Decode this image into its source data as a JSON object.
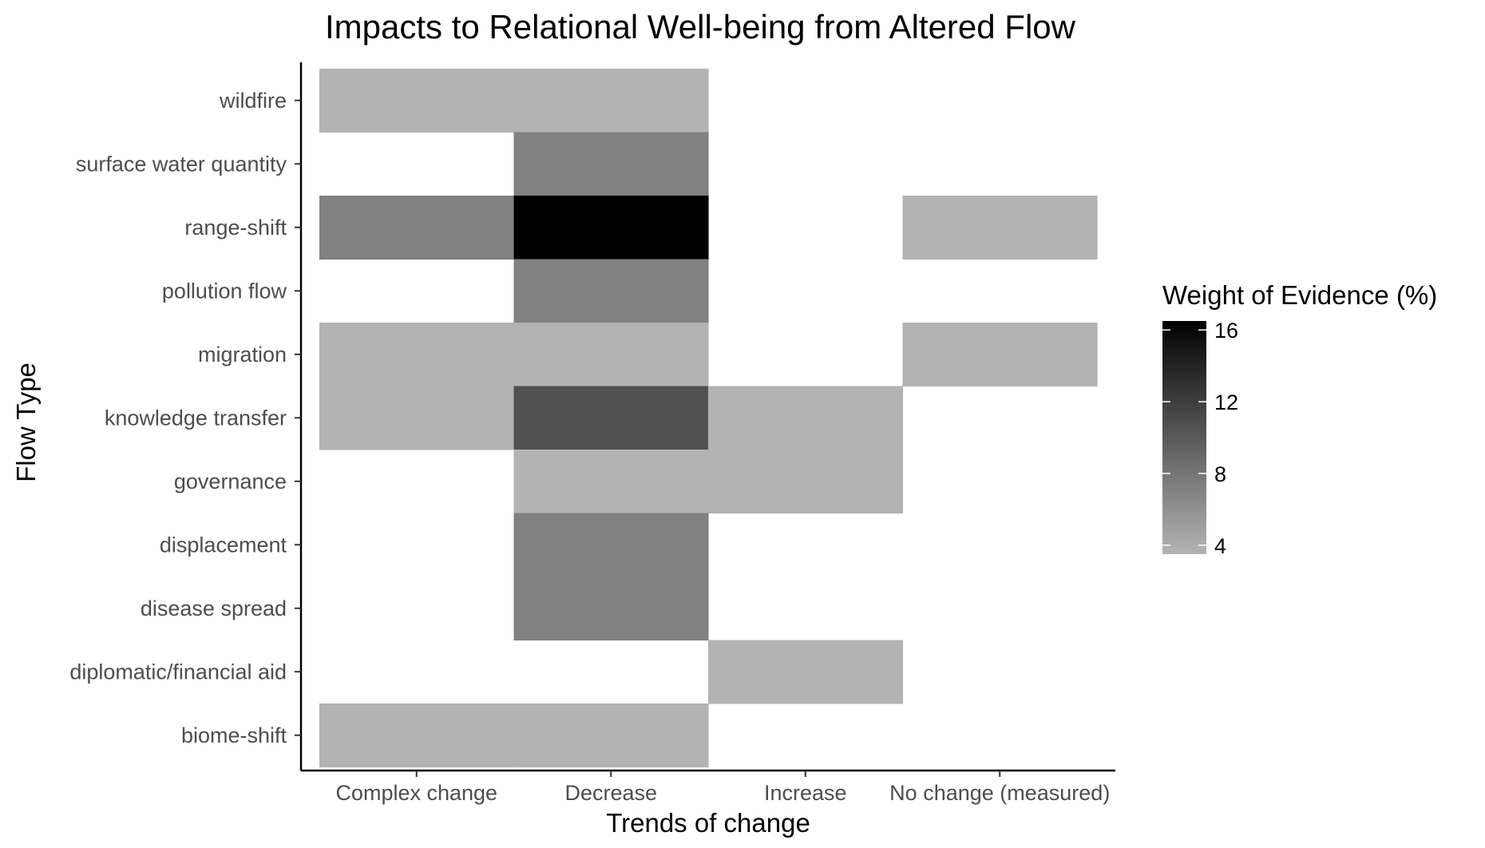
{
  "chart_data": {
    "type": "heatmap",
    "title": "Impacts to Relational Well-being from Altered Flow",
    "xlabel": "Trends of change",
    "ylabel": "Flow Type",
    "x_categories": [
      "Complex change",
      "Decrease",
      "Increase",
      "No change (measured)"
    ],
    "y_categories": [
      "biome-shift",
      "diplomatic/financial aid",
      "disease spread",
      "displacement",
      "governance",
      "knowledge transfer",
      "migration",
      "pollution flow",
      "range-shift",
      "surface water quantity",
      "wildfire"
    ],
    "cells": [
      {
        "x": "Complex change",
        "y": "wildfire",
        "value": 3.5
      },
      {
        "x": "Decrease",
        "y": "wildfire",
        "value": 3.5
      },
      {
        "x": "Decrease",
        "y": "surface water quantity",
        "value": 7.1
      },
      {
        "x": "Complex change",
        "y": "range-shift",
        "value": 7.1
      },
      {
        "x": "Decrease",
        "y": "range-shift",
        "value": 16.5
      },
      {
        "x": "No change (measured)",
        "y": "range-shift",
        "value": 3.5
      },
      {
        "x": "Decrease",
        "y": "pollution flow",
        "value": 7.1
      },
      {
        "x": "Complex change",
        "y": "migration",
        "value": 3.5
      },
      {
        "x": "Decrease",
        "y": "migration",
        "value": 3.5
      },
      {
        "x": "No change (measured)",
        "y": "migration",
        "value": 3.5
      },
      {
        "x": "Complex change",
        "y": "knowledge transfer",
        "value": 3.5
      },
      {
        "x": "Decrease",
        "y": "knowledge transfer",
        "value": 10.6
      },
      {
        "x": "Increase",
        "y": "knowledge transfer",
        "value": 3.5
      },
      {
        "x": "Decrease",
        "y": "governance",
        "value": 3.5
      },
      {
        "x": "Increase",
        "y": "governance",
        "value": 3.5
      },
      {
        "x": "Decrease",
        "y": "displacement",
        "value": 7.1
      },
      {
        "x": "Decrease",
        "y": "disease spread",
        "value": 7.1
      },
      {
        "x": "Increase",
        "y": "diplomatic/financial aid",
        "value": 3.5
      },
      {
        "x": "Complex change",
        "y": "biome-shift",
        "value": 3.5
      },
      {
        "x": "Decrease",
        "y": "biome-shift",
        "value": 3.5
      }
    ],
    "legend": {
      "title": "Weight of Evidence (%)",
      "ticks": [
        4,
        8,
        12,
        16
      ],
      "tick_labels": [
        "4",
        "8",
        "12",
        "16"
      ],
      "range": [
        3.5,
        16.5
      ],
      "low_color": "#b3b3b3",
      "high_color": "#000000",
      "placement": "right"
    },
    "grid": false
  }
}
